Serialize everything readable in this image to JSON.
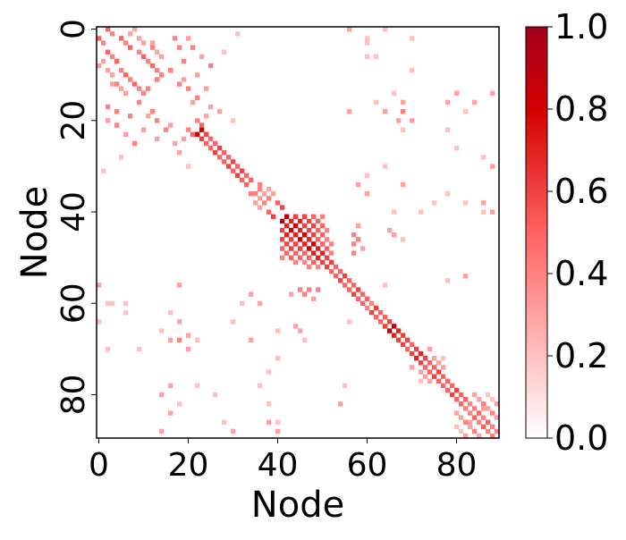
{
  "chart_data": {
    "type": "heatmap",
    "xlabel": "Node",
    "ylabel": "Node",
    "xlim": [
      0,
      90
    ],
    "ylim": [
      0,
      90
    ],
    "xticks": [
      0,
      20,
      40,
      60,
      80
    ],
    "yticks": [
      0,
      20,
      40,
      60,
      80
    ],
    "symmetric": true,
    "colorscale": [
      [
        0,
        "#ffffff"
      ],
      [
        0.5,
        "#ff6262"
      ],
      [
        0.8,
        "#d40000"
      ],
      [
        1,
        "#a3001f"
      ]
    ],
    "clim": [
      0,
      1
    ],
    "cticks": [
      {
        "value": 0,
        "label": "0.0"
      },
      {
        "value": 0.2,
        "label": "0.2"
      },
      {
        "value": 0.4,
        "label": "0.4"
      },
      {
        "value": 0.6,
        "label": "0.6"
      },
      {
        "value": 0.8,
        "label": "0.8"
      },
      {
        "value": 1,
        "label": "1.0"
      }
    ],
    "cells": [
      [
        0,
        2,
        0.5
      ],
      [
        1,
        3,
        0.4
      ],
      [
        2,
        5,
        0.5
      ],
      [
        3,
        6,
        0.4
      ],
      [
        4,
        7,
        0.5
      ],
      [
        5,
        9,
        0.4
      ],
      [
        6,
        10,
        0.5
      ],
      [
        7,
        11,
        0.4
      ],
      [
        8,
        12,
        0.5
      ],
      [
        9,
        13,
        0.4
      ],
      [
        2,
        9,
        0.3
      ],
      [
        3,
        10,
        0.3
      ],
      [
        4,
        12,
        0.4
      ],
      [
        5,
        13,
        0.3
      ],
      [
        6,
        14,
        0.3
      ],
      [
        1,
        7,
        0.3
      ],
      [
        0,
        8,
        0.3
      ],
      [
        10,
        14,
        0.4
      ],
      [
        11,
        13,
        0.4
      ],
      [
        3,
        12,
        0.3
      ],
      [
        2,
        17,
        0.4
      ],
      [
        4,
        21,
        0.4
      ],
      [
        6,
        23,
        0.3
      ],
      [
        8,
        25,
        0.4
      ],
      [
        10,
        22,
        0.3
      ],
      [
        12,
        18,
        0.4
      ],
      [
        13,
        24,
        0.3
      ],
      [
        1,
        31,
        0.2
      ],
      [
        5,
        28,
        0.2
      ],
      [
        7,
        19,
        0.4
      ],
      [
        0,
        56,
        0.3
      ],
      [
        0,
        64,
        0.2
      ],
      [
        3,
        60,
        0.2
      ],
      [
        6,
        62,
        0.2
      ],
      [
        9,
        70,
        0.2
      ],
      [
        18,
        56,
        0.3
      ],
      [
        18,
        68,
        0.4
      ],
      [
        18,
        82,
        0.2
      ],
      [
        20,
        70,
        0.3
      ],
      [
        22,
        78,
        0.2
      ],
      [
        26,
        80,
        0.2
      ],
      [
        28,
        86,
        0.2
      ],
      [
        30,
        88,
        0.3
      ],
      [
        16,
        62,
        0.2
      ],
      [
        14,
        66,
        0.2
      ],
      [
        22,
        23,
        0.8
      ],
      [
        23,
        24,
        0.6
      ],
      [
        24,
        25,
        0.5
      ],
      [
        25,
        26,
        0.5
      ],
      [
        26,
        27,
        0.6
      ],
      [
        27,
        28,
        0.5
      ],
      [
        28,
        29,
        0.5
      ],
      [
        29,
        30,
        0.6
      ],
      [
        30,
        31,
        0.5
      ],
      [
        31,
        32,
        0.6
      ],
      [
        32,
        33,
        0.5
      ],
      [
        33,
        34,
        0.5
      ],
      [
        20,
        22,
        0.4
      ],
      [
        21,
        23,
        0.5
      ],
      [
        19,
        24,
        0.3
      ],
      [
        16,
        21,
        0.3
      ],
      [
        17,
        25,
        0.3
      ],
      [
        15,
        22,
        0.4
      ],
      [
        18,
        27,
        0.3
      ],
      [
        20,
        30,
        0.2
      ],
      [
        2,
        20,
        0.3
      ],
      [
        4,
        18,
        0.4
      ],
      [
        9,
        16,
        0.4
      ],
      [
        11,
        19,
        0.3
      ],
      [
        13,
        20,
        0.4
      ],
      [
        35,
        36,
        0.4
      ],
      [
        36,
        37,
        0.3
      ],
      [
        37,
        38,
        0.4
      ],
      [
        35,
        38,
        0.3
      ],
      [
        36,
        39,
        0.3
      ],
      [
        38,
        40,
        0.5
      ],
      [
        39,
        41,
        0.6
      ],
      [
        34,
        36,
        0.4
      ],
      [
        41,
        42,
        0.9
      ],
      [
        42,
        43,
        0.7
      ],
      [
        43,
        44,
        0.8
      ],
      [
        44,
        45,
        0.7
      ],
      [
        45,
        46,
        0.8
      ],
      [
        46,
        47,
        0.7
      ],
      [
        47,
        48,
        0.8
      ],
      [
        48,
        49,
        0.7
      ],
      [
        49,
        50,
        0.7
      ],
      [
        50,
        51,
        0.6
      ],
      [
        51,
        52,
        0.6
      ],
      [
        52,
        53,
        0.5
      ],
      [
        53,
        54,
        0.5
      ],
      [
        41,
        44,
        0.6
      ],
      [
        41,
        46,
        0.6
      ],
      [
        42,
        45,
        0.7
      ],
      [
        42,
        47,
        0.6
      ],
      [
        43,
        46,
        0.6
      ],
      [
        43,
        48,
        0.6
      ],
      [
        44,
        47,
        0.6
      ],
      [
        44,
        49,
        0.5
      ],
      [
        45,
        48,
        0.6
      ],
      [
        45,
        50,
        0.5
      ],
      [
        46,
        49,
        0.5
      ],
      [
        47,
        50,
        0.5
      ],
      [
        48,
        51,
        0.5
      ],
      [
        41,
        48,
        0.5
      ],
      [
        42,
        49,
        0.5
      ],
      [
        43,
        50,
        0.5
      ],
      [
        46,
        51,
        0.4
      ],
      [
        47,
        52,
        0.4
      ],
      [
        41,
        50,
        0.4
      ],
      [
        44,
        51,
        0.4
      ],
      [
        49,
        52,
        0.4
      ],
      [
        43,
        58,
        0.3
      ],
      [
        46,
        58,
        0.4
      ],
      [
        48,
        59,
        0.3
      ],
      [
        44,
        65,
        0.3
      ],
      [
        46,
        68,
        0.2
      ],
      [
        45,
        66,
        0.3
      ],
      [
        45,
        57,
        0.4
      ],
      [
        47,
        57,
        0.4
      ],
      [
        49,
        57,
        0.4
      ],
      [
        54,
        55,
        0.6
      ],
      [
        55,
        56,
        0.5
      ],
      [
        56,
        57,
        0.5
      ],
      [
        57,
        58,
        0.6
      ],
      [
        58,
        59,
        0.5
      ],
      [
        59,
        60,
        0.5
      ],
      [
        60,
        61,
        0.4
      ],
      [
        61,
        62,
        0.6
      ],
      [
        62,
        63,
        0.5
      ],
      [
        63,
        64,
        0.5
      ],
      [
        64,
        65,
        0.6
      ],
      [
        65,
        66,
        0.9
      ],
      [
        66,
        67,
        0.7
      ],
      [
        67,
        68,
        0.6
      ],
      [
        68,
        69,
        0.6
      ],
      [
        69,
        70,
        0.5
      ],
      [
        70,
        71,
        0.6
      ],
      [
        71,
        72,
        0.7
      ],
      [
        72,
        73,
        0.6
      ],
      [
        73,
        74,
        0.5
      ],
      [
        74,
        75,
        0.5
      ],
      [
        75,
        76,
        0.6
      ],
      [
        76,
        77,
        0.5
      ],
      [
        77,
        78,
        0.5
      ],
      [
        78,
        79,
        0.5
      ],
      [
        79,
        80,
        0.6
      ],
      [
        80,
        81,
        0.5
      ],
      [
        81,
        82,
        0.5
      ],
      [
        82,
        83,
        0.4
      ],
      [
        83,
        84,
        0.4
      ],
      [
        84,
        85,
        0.5
      ],
      [
        85,
        86,
        0.4
      ],
      [
        86,
        87,
        0.5
      ],
      [
        87,
        88,
        0.4
      ],
      [
        88,
        89,
        0.4
      ],
      [
        80,
        84,
        0.3
      ],
      [
        81,
        85,
        0.3
      ],
      [
        82,
        86,
        0.4
      ],
      [
        83,
        87,
        0.3
      ],
      [
        84,
        88,
        0.4
      ],
      [
        85,
        89,
        0.3
      ],
      [
        80,
        87,
        0.2
      ],
      [
        82,
        89,
        0.3
      ],
      [
        83,
        86,
        0.3
      ],
      [
        81,
        88,
        0.2
      ],
      [
        72,
        75,
        0.3
      ],
      [
        73,
        76,
        0.3
      ],
      [
        74,
        77,
        0.3
      ],
      [
        72,
        77,
        0.2
      ],
      [
        70,
        74,
        0.3
      ],
      [
        2,
        60,
        0.2
      ],
      [
        6,
        60,
        0.2
      ],
      [
        18,
        64,
        0.3
      ],
      [
        16,
        68,
        0.3
      ],
      [
        20,
        67,
        0.3
      ],
      [
        22,
        68,
        0.2
      ],
      [
        2,
        70,
        0.2
      ],
      [
        16,
        78,
        0.3
      ],
      [
        14,
        80,
        0.3
      ],
      [
        16,
        84,
        0.3
      ],
      [
        14,
        88,
        0.3
      ],
      [
        38,
        86,
        0.3
      ],
      [
        40,
        86,
        0.2
      ],
      [
        54,
        82,
        0.3
      ],
      [
        55,
        78,
        0.2
      ],
      [
        38,
        75,
        0.2
      ],
      [
        40,
        72,
        0.2
      ],
      [
        40,
        66,
        0.2
      ],
      [
        36,
        60,
        0.3
      ],
      [
        34,
        58,
        0.3
      ],
      [
        56,
        64,
        0.2
      ],
      [
        36,
        78,
        0.2
      ],
      [
        38,
        82,
        0.2
      ],
      [
        40,
        88,
        0.3
      ],
      [
        34,
        68,
        0.3
      ],
      [
        32,
        60,
        0.2
      ],
      [
        30,
        64,
        0.2
      ]
    ]
  }
}
